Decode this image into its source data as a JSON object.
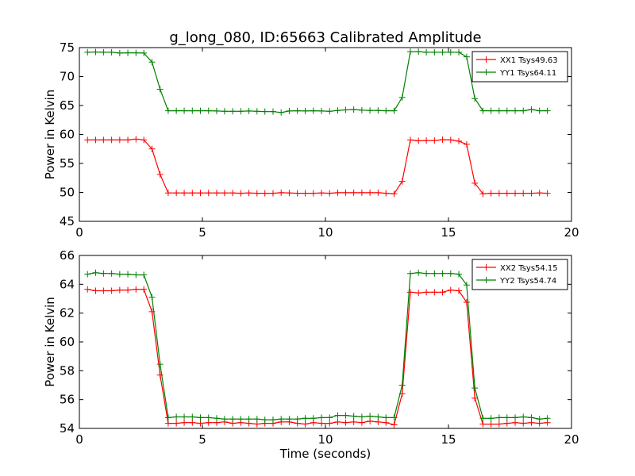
{
  "figure": {
    "title": "g_long_080, ID:65663 Calibrated Amplitude"
  },
  "chart_data": [
    {
      "type": "line",
      "xlabel": "",
      "ylabel": "Power in Kelvin",
      "xlim": [
        0,
        20
      ],
      "ylim": [
        45,
        75
      ],
      "xticks": [
        0,
        5,
        10,
        15,
        20
      ],
      "yticks": [
        45,
        50,
        55,
        60,
        65,
        70,
        75
      ],
      "legend_position": "top-right",
      "grid": false,
      "x": [
        0.33,
        0.66,
        0.98,
        1.31,
        1.64,
        1.97,
        2.3,
        2.62,
        2.95,
        3.28,
        3.61,
        3.94,
        4.26,
        4.59,
        4.92,
        5.25,
        5.58,
        5.9,
        6.23,
        6.56,
        6.89,
        7.22,
        7.54,
        7.87,
        8.2,
        8.53,
        8.86,
        9.18,
        9.51,
        9.84,
        10.17,
        10.5,
        10.82,
        11.15,
        11.48,
        11.81,
        12.14,
        12.46,
        12.79,
        13.12,
        13.45,
        13.78,
        14.1,
        14.43,
        14.76,
        15.09,
        15.42,
        15.74,
        16.07,
        16.4,
        16.73,
        17.06,
        17.38,
        17.71,
        18.04,
        18.37,
        18.7,
        19.02
      ],
      "series": [
        {
          "name": "XX1 Tsys49.63",
          "color": "#ff0000",
          "values": [
            59.05,
            59.05,
            59.05,
            59.05,
            59.05,
            59.05,
            59.2,
            59.05,
            57.5,
            53.1,
            49.9,
            49.9,
            49.9,
            49.9,
            49.9,
            49.9,
            49.9,
            49.9,
            49.9,
            49.85,
            49.9,
            49.85,
            49.85,
            49.85,
            49.95,
            49.9,
            49.85,
            49.85,
            49.85,
            49.9,
            49.85,
            49.95,
            49.95,
            49.95,
            49.95,
            49.95,
            49.95,
            49.85,
            49.75,
            51.9,
            59.05,
            58.9,
            58.95,
            58.95,
            59.1,
            59.05,
            58.85,
            58.3,
            51.6,
            49.75,
            49.85,
            49.85,
            49.85,
            49.85,
            49.85,
            49.85,
            49.9,
            49.85
          ]
        },
        {
          "name": "YY1 Tsys64.11",
          "color": "#008000",
          "values": [
            74.2,
            74.25,
            74.2,
            74.2,
            74.05,
            74.1,
            74.1,
            74.05,
            72.5,
            67.8,
            64.1,
            64.1,
            64.1,
            64.1,
            64.1,
            64.1,
            64.05,
            64.0,
            64.0,
            64.0,
            64.05,
            64.0,
            63.95,
            63.95,
            63.8,
            64.05,
            64.1,
            64.05,
            64.1,
            64.05,
            64.0,
            64.15,
            64.25,
            64.3,
            64.2,
            64.15,
            64.15,
            64.1,
            64.1,
            66.4,
            74.3,
            74.3,
            74.2,
            74.2,
            74.2,
            74.2,
            74.2,
            73.4,
            66.2,
            64.1,
            64.1,
            64.1,
            64.1,
            64.1,
            64.1,
            64.3,
            64.1,
            64.1
          ]
        }
      ]
    },
    {
      "type": "line",
      "xlabel": "Time (seconds)",
      "ylabel": "Power in Kelvin",
      "xlim": [
        0,
        20
      ],
      "ylim": [
        54,
        66
      ],
      "xticks": [
        0,
        5,
        10,
        15,
        20
      ],
      "yticks": [
        54,
        56,
        58,
        60,
        62,
        64,
        66
      ],
      "legend_position": "top-right",
      "grid": false,
      "x": [
        0.33,
        0.66,
        0.98,
        1.31,
        1.64,
        1.97,
        2.3,
        2.62,
        2.95,
        3.28,
        3.61,
        3.94,
        4.26,
        4.59,
        4.92,
        5.25,
        5.58,
        5.9,
        6.23,
        6.56,
        6.89,
        7.22,
        7.54,
        7.87,
        8.2,
        8.53,
        8.86,
        9.18,
        9.51,
        9.84,
        10.17,
        10.5,
        10.82,
        11.15,
        11.48,
        11.81,
        12.14,
        12.46,
        12.79,
        13.12,
        13.45,
        13.78,
        14.1,
        14.43,
        14.76,
        15.09,
        15.42,
        15.74,
        16.07,
        16.4,
        16.73,
        17.06,
        17.38,
        17.71,
        18.04,
        18.37,
        18.7,
        19.02
      ],
      "series": [
        {
          "name": "XX2 Tsys54.15",
          "color": "#ff0000",
          "values": [
            63.65,
            63.55,
            63.55,
            63.55,
            63.6,
            63.6,
            63.65,
            63.65,
            62.1,
            57.7,
            54.35,
            54.35,
            54.4,
            54.4,
            54.35,
            54.4,
            54.4,
            54.45,
            54.35,
            54.4,
            54.35,
            54.3,
            54.35,
            54.35,
            54.45,
            54.45,
            54.35,
            54.3,
            54.4,
            54.35,
            54.35,
            54.45,
            54.4,
            54.45,
            54.4,
            54.5,
            54.45,
            54.4,
            54.25,
            56.4,
            63.45,
            63.4,
            63.45,
            63.45,
            63.45,
            63.6,
            63.55,
            62.75,
            56.1,
            54.3,
            54.3,
            54.3,
            54.35,
            54.4,
            54.35,
            54.4,
            54.35,
            54.4
          ]
        },
        {
          "name": "YY2 Tsys54.74",
          "color": "#008000",
          "values": [
            64.7,
            64.8,
            64.75,
            64.75,
            64.7,
            64.7,
            64.65,
            64.65,
            63.1,
            58.45,
            54.75,
            54.8,
            54.8,
            54.8,
            54.75,
            54.75,
            54.7,
            54.65,
            54.65,
            54.65,
            54.65,
            54.65,
            54.6,
            54.6,
            54.65,
            54.65,
            54.65,
            54.7,
            54.7,
            54.75,
            54.75,
            54.9,
            54.9,
            54.85,
            54.8,
            54.85,
            54.8,
            54.75,
            54.75,
            57.0,
            64.75,
            64.8,
            64.75,
            64.75,
            64.75,
            64.75,
            64.7,
            63.95,
            56.8,
            54.7,
            54.7,
            54.75,
            54.75,
            54.75,
            54.8,
            54.75,
            54.65,
            54.7
          ]
        }
      ]
    }
  ]
}
